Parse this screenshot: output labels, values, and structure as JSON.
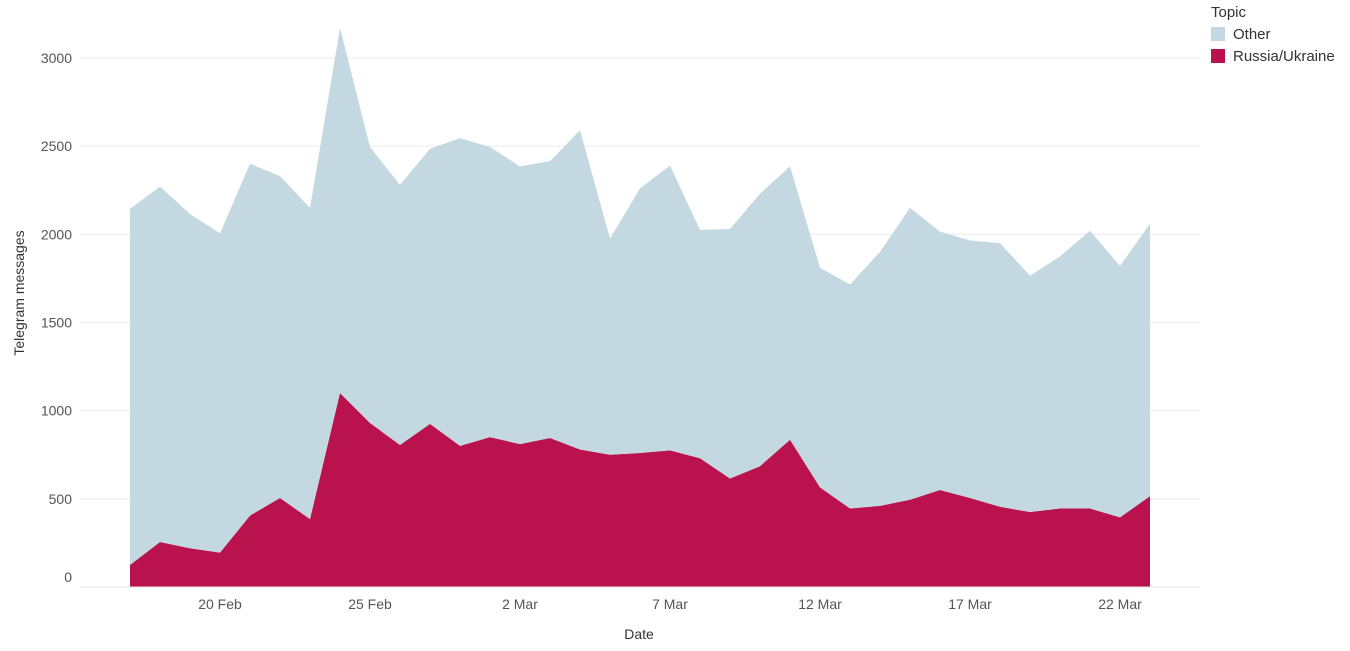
{
  "chart_data": {
    "type": "area",
    "stacked": true,
    "xlabel": "Date",
    "ylabel": "Telegram messages",
    "ylim": [
      0,
      3300
    ],
    "yticks": [
      0,
      500,
      1000,
      1500,
      2000,
      2500,
      3000
    ],
    "xticks": [
      {
        "date": "2022-02-20",
        "label": "20 Feb"
      },
      {
        "date": "2022-02-25",
        "label": "25 Feb"
      },
      {
        "date": "2022-03-02",
        "label": "2 Mar"
      },
      {
        "date": "2022-03-07",
        "label": "7 Mar"
      },
      {
        "date": "2022-03-12",
        "label": "12 Mar"
      },
      {
        "date": "2022-03-17",
        "label": "17 Mar"
      },
      {
        "date": "2022-03-22",
        "label": "22 Mar"
      }
    ],
    "grid": true,
    "legend": {
      "title": "Topic",
      "position": "top-right"
    },
    "x": [
      "2022-02-17",
      "2022-02-18",
      "2022-02-19",
      "2022-02-20",
      "2022-02-21",
      "2022-02-22",
      "2022-02-23",
      "2022-02-24",
      "2022-02-25",
      "2022-02-26",
      "2022-02-27",
      "2022-02-28",
      "2022-03-01",
      "2022-03-02",
      "2022-03-03",
      "2022-03-04",
      "2022-03-05",
      "2022-03-06",
      "2022-03-07",
      "2022-03-08",
      "2022-03-09",
      "2022-03-10",
      "2022-03-11",
      "2022-03-12",
      "2022-03-13",
      "2022-03-14",
      "2022-03-15",
      "2022-03-16",
      "2022-03-17",
      "2022-03-18",
      "2022-03-19",
      "2022-03-20",
      "2022-03-21",
      "2022-03-22",
      "2022-03-23"
    ],
    "series": [
      {
        "name": "Russia/Ukraine",
        "color": "#BA124C",
        "values": [
          125,
          255,
          220,
          195,
          405,
          505,
          385,
          1100,
          930,
          805,
          925,
          800,
          850,
          810,
          845,
          780,
          750,
          760,
          775,
          730,
          615,
          685,
          835,
          565,
          445,
          460,
          495,
          550,
          505,
          455,
          425,
          445,
          445,
          395,
          515
        ]
      },
      {
        "name": "Other",
        "color": "#C3D8E0",
        "values": [
          2020,
          2015,
          1895,
          1810,
          1995,
          1825,
          1765,
          2070,
          1565,
          1475,
          1560,
          1745,
          1645,
          1575,
          1570,
          1810,
          1225,
          1500,
          1615,
          1295,
          1415,
          1545,
          1550,
          1245,
          1270,
          1440,
          1655,
          1465,
          1460,
          1495,
          1340,
          1430,
          1575,
          1425,
          1545
        ]
      }
    ]
  }
}
